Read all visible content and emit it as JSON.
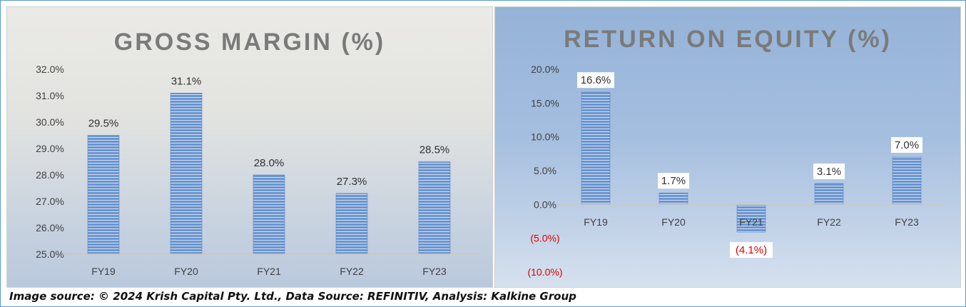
{
  "caption": "Image source: © 2024 Krish Capital Pty. Ltd., Data Source: REFINITIV, Analysis: Kalkine Group",
  "colors": {
    "bar": "#6a95cf",
    "bar_stripe": "#e6eef8",
    "negative_label": "#e00000",
    "title": "#7a7a7a",
    "axis_text": "#404040"
  },
  "chart_data": [
    {
      "type": "bar",
      "title": "GROSS MARGIN (%)",
      "categories": [
        "FY19",
        "FY20",
        "FY21",
        "FY22",
        "FY23"
      ],
      "values": [
        29.5,
        31.1,
        28.0,
        27.3,
        28.5
      ],
      "value_labels": [
        "29.5%",
        "31.1%",
        "28.0%",
        "27.3%",
        "28.5%"
      ],
      "ylim": [
        25.0,
        32.0
      ],
      "yticks": [
        25.0,
        26.0,
        27.0,
        28.0,
        29.0,
        30.0,
        31.0,
        32.0
      ],
      "ytick_labels": [
        "25.0%",
        "26.0%",
        "27.0%",
        "28.0%",
        "29.0%",
        "30.0%",
        "31.0%",
        "32.0%"
      ],
      "label_boxes": false,
      "grid": false
    },
    {
      "type": "bar",
      "title": "RETURN ON EQUITY (%)",
      "categories": [
        "FY19",
        "FY20",
        "FY21",
        "FY22",
        "FY23"
      ],
      "values": [
        16.6,
        1.7,
        -4.1,
        3.1,
        7.0
      ],
      "value_labels": [
        "16.6%",
        "1.7%",
        "(4.1%)",
        "3.1%",
        "7.0%"
      ],
      "ylim": [
        -10.0,
        20.0
      ],
      "yticks": [
        -10.0,
        -5.0,
        0.0,
        5.0,
        10.0,
        15.0,
        20.0
      ],
      "ytick_labels": [
        "(10.0%)",
        "(5.0%)",
        "0.0%",
        "5.0%",
        "10.0%",
        "15.0%",
        "20.0%"
      ],
      "label_boxes": true,
      "grid": false
    }
  ]
}
